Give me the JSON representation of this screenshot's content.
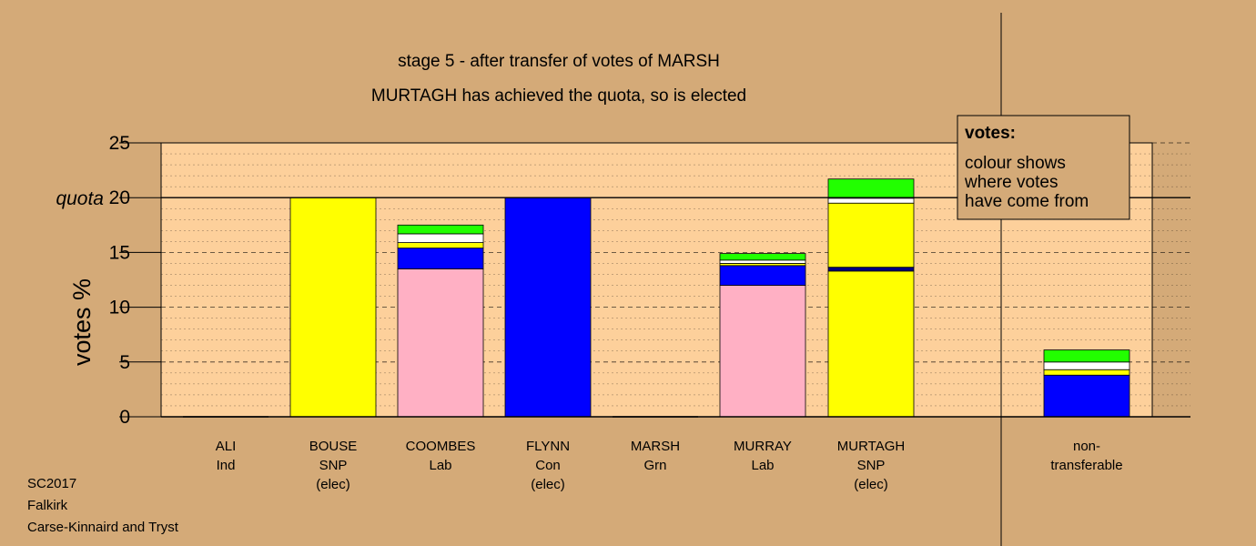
{
  "title_line1": "stage 5 - after transfer of votes of MARSH",
  "title_line2": "MURTAGH has achieved the quota, so is elected",
  "ylabel": "votes %",
  "quota_label": "quota",
  "legend": {
    "heading": "votes:",
    "lines": [
      "colour shows",
      "where votes",
      "have come from"
    ]
  },
  "footer": [
    "SC2017",
    "Falkirk",
    "Carse-Kinnaird and Tryst"
  ],
  "colors": {
    "background": "#d4aa78",
    "plot": "#fdd09b",
    "SNP": "#ffff00",
    "Lab": "#ffb0c4",
    "Con": "#0000ff",
    "Grn": "#22ff00",
    "Ind": "#ffffff",
    "navy": "#000080"
  },
  "chart_data": {
    "type": "bar",
    "stacked": true,
    "ylim": [
      0,
      25
    ],
    "yticks": [
      0,
      5,
      10,
      15,
      20,
      25
    ],
    "quota": 20,
    "grid": true,
    "categories": [
      {
        "lines": [
          "ALI",
          "Ind"
        ],
        "segments": []
      },
      {
        "lines": [
          "BOUSE",
          "SNP",
          "(elec)"
        ],
        "segments": [
          {
            "from": "SNP",
            "value": 20
          }
        ]
      },
      {
        "lines": [
          "COOMBES",
          "Lab"
        ],
        "segments": [
          {
            "from": "Lab",
            "value": 13.5
          },
          {
            "from": "Con",
            "value": 1.9
          },
          {
            "from": "SNP",
            "value": 0.5
          },
          {
            "from": "Ind",
            "value": 0.8
          },
          {
            "from": "Grn",
            "value": 0.8
          }
        ]
      },
      {
        "lines": [
          "FLYNN",
          "Con",
          "(elec)"
        ],
        "segments": [
          {
            "from": "Con",
            "value": 20
          }
        ]
      },
      {
        "lines": [
          "MARSH",
          "Grn"
        ],
        "segments": []
      },
      {
        "lines": [
          "MURRAY",
          "Lab"
        ],
        "segments": [
          {
            "from": "Lab",
            "value": 12.0
          },
          {
            "from": "Con",
            "value": 1.8
          },
          {
            "from": "SNP",
            "value": 0.2
          },
          {
            "from": "Ind",
            "value": 0.3
          },
          {
            "from": "Grn",
            "value": 0.6
          }
        ]
      },
      {
        "lines": [
          "MURTAGH",
          "SNP",
          "(elec)"
        ],
        "segments": [
          {
            "from": "SNP",
            "value": 13.3
          },
          {
            "from": "navy",
            "value": 0.35
          },
          {
            "from": "SNP",
            "value": 5.85
          },
          {
            "from": "Ind",
            "value": 0.45
          },
          {
            "from": "Grn",
            "value": 1.75
          }
        ]
      },
      {
        "lines": [
          "non-",
          "transferable"
        ],
        "segments": [
          {
            "from": "Con",
            "value": 3.8
          },
          {
            "from": "SNP",
            "value": 0.5
          },
          {
            "from": "Ind",
            "value": 0.7
          },
          {
            "from": "Grn",
            "value": 1.1
          }
        ]
      }
    ]
  }
}
